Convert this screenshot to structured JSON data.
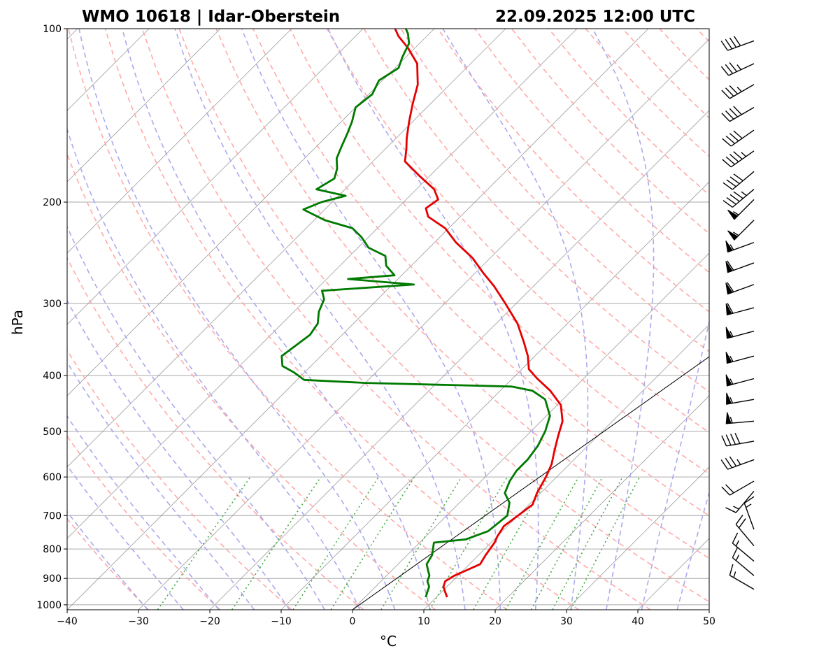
{
  "chart_data": {
    "type": "skew-t",
    "title_left": "WMO 10618 | Idar-Oberstein",
    "title_right": "22.09.2025 12:00 UTC",
    "xlabel": "°C",
    "ylabel": "hPa",
    "xlim": [
      -40,
      50
    ],
    "ylim": [
      1020,
      100
    ],
    "x_ticks": [
      -40,
      -30,
      -20,
      -10,
      0,
      10,
      20,
      30,
      40,
      50
    ],
    "x_tick_labels": [
      "−40",
      "−30",
      "−20",
      "−10",
      "0",
      "10",
      "20",
      "30",
      "40",
      "50"
    ],
    "y_ticks": [
      100,
      200,
      300,
      400,
      500,
      600,
      700,
      800,
      900,
      1000
    ],
    "y_tick_labels": [
      "100",
      "200",
      "300",
      "400",
      "500",
      "600",
      "700",
      "800",
      "900",
      "1000"
    ],
    "colors": {
      "temperature": "#e60000",
      "dewpoint": "#007a00",
      "dry_adiabat": "#ffaaaa",
      "moist_adiabat": "#aaaaee",
      "mixing_ratio": "#44aa44",
      "grid": "#aaaaaa",
      "isotherm": "#888888"
    },
    "series": [
      {
        "name": "temperature",
        "points": [
          [
            11.5,
            970
          ],
          [
            10.5,
            950
          ],
          [
            9.5,
            930
          ],
          [
            9.0,
            910
          ],
          [
            9.5,
            890
          ],
          [
            10.5,
            870
          ],
          [
            11.5,
            850
          ],
          [
            11.0,
            820
          ],
          [
            10.5,
            780
          ],
          [
            10.0,
            760
          ],
          [
            9.5,
            730
          ],
          [
            10.0,
            700
          ],
          [
            10.5,
            670
          ],
          [
            9.5,
            640
          ],
          [
            8.5,
            600
          ],
          [
            7.5,
            570
          ],
          [
            6.0,
            540
          ],
          [
            4.5,
            510
          ],
          [
            3.0,
            480
          ],
          [
            0.5,
            450
          ],
          [
            -3.0,
            425
          ],
          [
            -6.5,
            405
          ],
          [
            -9.0,
            390
          ],
          [
            -11.0,
            370
          ],
          [
            -13.5,
            350
          ],
          [
            -17.0,
            325
          ],
          [
            -21.5,
            300
          ],
          [
            -25.5,
            280
          ],
          [
            -29.0,
            265
          ],
          [
            -32.5,
            250
          ],
          [
            -37.0,
            235
          ],
          [
            -40.5,
            222
          ],
          [
            -44.5,
            212
          ],
          [
            -46.0,
            205
          ],
          [
            -45.5,
            198
          ],
          [
            -47.5,
            190
          ],
          [
            -51.5,
            180
          ],
          [
            -55.5,
            170
          ],
          [
            -57.0,
            162
          ],
          [
            -58.5,
            155
          ],
          [
            -60.5,
            145
          ],
          [
            -62.5,
            135
          ],
          [
            -64.5,
            125
          ],
          [
            -67.5,
            115
          ],
          [
            -71.0,
            108
          ],
          [
            -74.0,
            103
          ],
          [
            -75.5,
            100
          ]
        ]
      },
      {
        "name": "dewpoint",
        "points": [
          [
            8.5,
            970
          ],
          [
            8.0,
            950
          ],
          [
            7.5,
            930
          ],
          [
            6.5,
            910
          ],
          [
            6.0,
            890
          ],
          [
            5.0,
            870
          ],
          [
            4.0,
            850
          ],
          [
            3.5,
            820
          ],
          [
            2.0,
            780
          ],
          [
            6.0,
            770
          ],
          [
            8.0,
            745
          ],
          [
            8.5,
            700
          ],
          [
            7.0,
            665
          ],
          [
            5.0,
            640
          ],
          [
            4.0,
            610
          ],
          [
            3.5,
            585
          ],
          [
            3.5,
            560
          ],
          [
            3.0,
            530
          ],
          [
            2.0,
            500
          ],
          [
            0.5,
            470
          ],
          [
            -2.5,
            440
          ],
          [
            -5.5,
            425
          ],
          [
            -9.0,
            418
          ],
          [
            -30.0,
            412
          ],
          [
            -39.0,
            407
          ],
          [
            -41.5,
            395
          ],
          [
            -44.0,
            385
          ],
          [
            -45.5,
            370
          ],
          [
            -45.0,
            355
          ],
          [
            -44.5,
            340
          ],
          [
            -45.0,
            325
          ],
          [
            -46.5,
            310
          ],
          [
            -47.5,
            295
          ],
          [
            -49.0,
            285
          ],
          [
            -37.0,
            278
          ],
          [
            -47.0,
            272
          ],
          [
            -41.0,
            268
          ],
          [
            -43.5,
            258
          ],
          [
            -45.0,
            248
          ],
          [
            -48.5,
            240
          ],
          [
            -51.0,
            230
          ],
          [
            -53.5,
            222
          ],
          [
            -58.5,
            215
          ],
          [
            -63.0,
            206
          ],
          [
            -61.5,
            200
          ],
          [
            -59.0,
            195
          ],
          [
            -64.0,
            190
          ],
          [
            -63.0,
            182
          ],
          [
            -64.0,
            175
          ],
          [
            -65.5,
            168
          ],
          [
            -66.5,
            160
          ],
          [
            -67.5,
            152
          ],
          [
            -68.5,
            145
          ],
          [
            -70.0,
            137
          ],
          [
            -69.5,
            130
          ],
          [
            -70.5,
            123
          ],
          [
            -69.5,
            117
          ],
          [
            -70.5,
            112
          ],
          [
            -71.5,
            106
          ],
          [
            -73.0,
            102
          ],
          [
            -74.0,
            100
          ]
        ]
      }
    ],
    "parcel_line": [
      [
        0,
        1020
      ],
      [
        20.2,
        250
      ]
    ],
    "wind_barbs": [
      {
        "p": 105,
        "dir": 250,
        "speed": 40
      },
      {
        "p": 115,
        "dir": 245,
        "speed": 35
      },
      {
        "p": 125,
        "dir": 240,
        "speed": 35
      },
      {
        "p": 137,
        "dir": 240,
        "speed": 40
      },
      {
        "p": 150,
        "dir": 235,
        "speed": 40
      },
      {
        "p": 163,
        "dir": 235,
        "speed": 45
      },
      {
        "p": 177,
        "dir": 230,
        "speed": 40
      },
      {
        "p": 190,
        "dir": 230,
        "speed": 45
      },
      {
        "p": 198,
        "dir": 225,
        "speed": 55
      },
      {
        "p": 215,
        "dir": 225,
        "speed": 55
      },
      {
        "p": 235,
        "dir": 250,
        "speed": 55
      },
      {
        "p": 255,
        "dir": 250,
        "speed": 60
      },
      {
        "p": 278,
        "dir": 250,
        "speed": 60
      },
      {
        "p": 305,
        "dir": 255,
        "speed": 60
      },
      {
        "p": 335,
        "dir": 255,
        "speed": 55
      },
      {
        "p": 370,
        "dir": 255,
        "speed": 55
      },
      {
        "p": 405,
        "dir": 255,
        "speed": 55
      },
      {
        "p": 440,
        "dir": 260,
        "speed": 55
      },
      {
        "p": 480,
        "dir": 265,
        "speed": 55
      },
      {
        "p": 520,
        "dir": 260,
        "speed": 40
      },
      {
        "p": 560,
        "dir": 250,
        "speed": 35
      },
      {
        "p": 610,
        "dir": 240,
        "speed": 20
      },
      {
        "p": 635,
        "dir": 220,
        "speed": 15
      },
      {
        "p": 740,
        "dir": 340,
        "speed": 15
      },
      {
        "p": 790,
        "dir": 320,
        "speed": 20
      },
      {
        "p": 840,
        "dir": 310,
        "speed": 15
      },
      {
        "p": 890,
        "dir": 310,
        "speed": 15
      },
      {
        "p": 940,
        "dir": 300,
        "speed": 15
      }
    ]
  }
}
